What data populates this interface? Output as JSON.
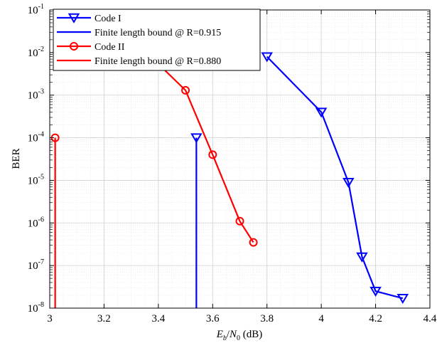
{
  "chart_data": {
    "type": "line",
    "xlabel_parts": {
      "e": "E",
      "b": "b",
      "slash": "/",
      "n": "N",
      "zero": "0",
      "unit": " (dB)"
    },
    "ylabel": "BER",
    "xlim": [
      3.0,
      4.4
    ],
    "ylim": [
      1e-08,
      0.1
    ],
    "yscale": "log",
    "grid": true,
    "minor_grid": true,
    "legend_position": "top-left",
    "x_ticks": [
      "3",
      "3.2",
      "3.4",
      "3.6",
      "3.8",
      "4",
      "4.2",
      "4.4"
    ],
    "y_ticks": [
      {
        "base": "10",
        "exp": "-8"
      },
      {
        "base": "10",
        "exp": "-7"
      },
      {
        "base": "10",
        "exp": "-6"
      },
      {
        "base": "10",
        "exp": "-5"
      },
      {
        "base": "10",
        "exp": "-4"
      },
      {
        "base": "10",
        "exp": "-3"
      },
      {
        "base": "10",
        "exp": "-2"
      },
      {
        "base": "10",
        "exp": "-1"
      }
    ],
    "series": [
      {
        "name": "Code I",
        "color": "#0000ff",
        "marker": "triangle-down",
        "x": [
          3.8,
          4.0,
          4.1,
          4.15,
          4.2,
          4.3
        ],
        "y": [
          0.008,
          0.0004,
          9e-06,
          1.6e-07,
          2.5e-08,
          1.7e-08
        ]
      },
      {
        "name": "Finite length bound @ R=0.915",
        "color": "#0000ff",
        "marker": "triangle-down",
        "marker_only_at_top": true,
        "x": [
          3.54,
          3.54
        ],
        "y": [
          0.0001,
          1e-08
        ]
      },
      {
        "name": "Code II",
        "color": "#ff0000",
        "marker": "circle",
        "x": [
          3.35,
          3.5,
          3.6,
          3.7,
          3.75
        ],
        "y": [
          0.011,
          0.0013,
          4e-05,
          1.1e-06,
          3.5e-07
        ],
        "marker_skip_first": true
      },
      {
        "name": "Finite length bound @ R=0.880",
        "color": "#ff0000",
        "marker": "circle",
        "marker_only_at_top": true,
        "x": [
          3.02,
          3.02
        ],
        "y": [
          0.0001,
          1e-08
        ]
      }
    ],
    "legend": [
      {
        "label": "Code I",
        "color": "#0000ff",
        "marker": "triangle-down"
      },
      {
        "label": "Finite length bound @ R=0.915",
        "color": "#0000ff",
        "marker": "none"
      },
      {
        "label": "Code II",
        "color": "#ff0000",
        "marker": "circle"
      },
      {
        "label": "Finite length bound @ R=0.880",
        "color": "#ff0000",
        "marker": "none"
      }
    ]
  }
}
